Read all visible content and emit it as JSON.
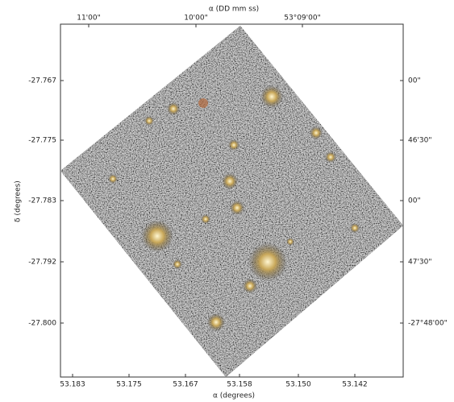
{
  "figure": {
    "top_axis_label": "α (DD mm ss)",
    "bottom_axis_label": "α (degrees)",
    "left_axis_label": "δ (degrees)",
    "top_ticks": [
      "11'00\"",
      "10'00\"",
      "53°09'00\""
    ],
    "bottom_ticks": [
      "53.183",
      "53.175",
      "53.167",
      "53.158",
      "53.150",
      "53.142"
    ],
    "left_ticks": [
      "-27.767",
      "-27.775",
      "-27.783",
      "-27.792",
      "-27.800"
    ],
    "right_ticks": [
      "00\"",
      "46'30\"",
      "00\"",
      "47'30\"",
      "-27°48'00\""
    ]
  }
}
